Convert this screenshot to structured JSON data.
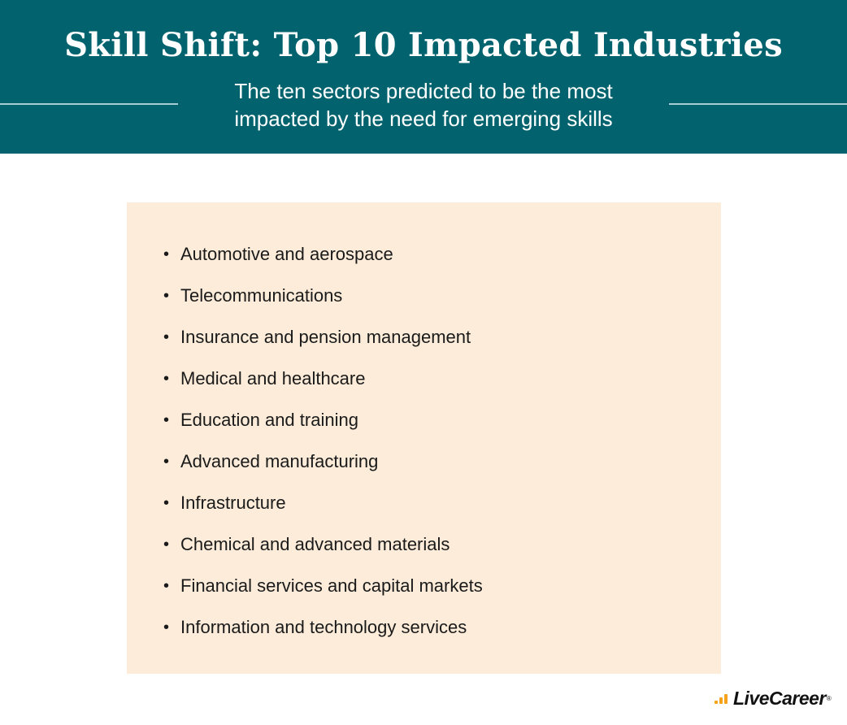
{
  "header": {
    "title": "Skill Shift: Top 10 Impacted Industries",
    "subtitle_line1": "The ten sectors predicted to be the most",
    "subtitle_line2": "impacted by the need for emerging skills",
    "background_color": "#02636e"
  },
  "industries": {
    "bullet": "•",
    "items": [
      "Automotive and aerospace",
      "Telecommunications",
      "Insurance and pension management",
      "Medical and healthcare",
      "Education and training",
      "Advanced manufacturing",
      "Infrastructure",
      "Chemical and advanced materials",
      "Financial services and capital markets",
      "Information and technology services"
    ],
    "panel_color": "#fcecd9"
  },
  "brand": {
    "logo_text": "LiveCareer",
    "logo_registered": "®",
    "accent_color": "#f6a21b"
  }
}
